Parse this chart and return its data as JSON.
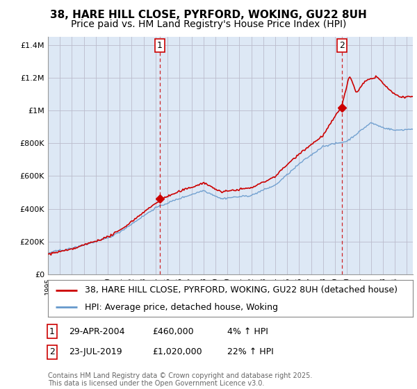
{
  "title": "38, HARE HILL CLOSE, PYRFORD, WOKING, GU22 8UH",
  "subtitle": "Price paid vs. HM Land Registry's House Price Index (HPI)",
  "ylabel_ticks": [
    "£0",
    "£200K",
    "£400K",
    "£600K",
    "£800K",
    "£1M",
    "£1.2M",
    "£1.4M"
  ],
  "ytick_values": [
    0,
    200000,
    400000,
    600000,
    800000,
    1000000,
    1200000,
    1400000
  ],
  "ylim": [
    0,
    1450000
  ],
  "xlim_start": 1995.0,
  "xlim_end": 2025.5,
  "point1_x": 2004.33,
  "point1_y": 460000,
  "point1_label": "1",
  "point1_date": "29-APR-2004",
  "point1_price": "£460,000",
  "point1_hpi": "4% ↑ HPI",
  "point2_x": 2019.55,
  "point2_y": 1020000,
  "point2_label": "2",
  "point2_date": "23-JUL-2019",
  "point2_price": "£1,020,000",
  "point2_hpi": "22% ↑ HPI",
  "line_color_red": "#cc0000",
  "line_color_blue": "#6699cc",
  "vline_color": "#cc0000",
  "grid_color": "#bbbbcc",
  "chart_bg": "#dde8f5",
  "background_color": "#ffffff",
  "legend_label_red": "38, HARE HILL CLOSE, PYRFORD, WOKING, GU22 8UH (detached house)",
  "legend_label_blue": "HPI: Average price, detached house, Woking",
  "footnote": "Contains HM Land Registry data © Crown copyright and database right 2025.\nThis data is licensed under the Open Government Licence v3.0.",
  "title_fontsize": 11,
  "subtitle_fontsize": 10,
  "tick_fontsize": 8,
  "legend_fontsize": 9
}
